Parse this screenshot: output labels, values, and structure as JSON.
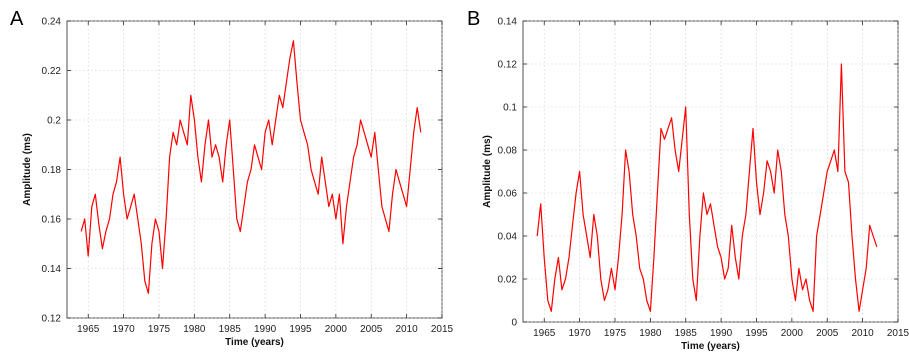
{
  "chart_data": [
    {
      "type": "line",
      "panel_label": "A",
      "title": "",
      "xlabel": "Time (years)",
      "ylabel": "Amplitude (ms)",
      "xlim": [
        1962,
        2015
      ],
      "ylim": [
        0.12,
        0.24
      ],
      "grid": true,
      "line_color": "#ff0000",
      "x_ticks": [
        1965,
        1970,
        1975,
        1980,
        1985,
        1990,
        1995,
        2000,
        2005,
        2010,
        2015
      ],
      "x_tick_labels": [
        "1965",
        "1970",
        "1975",
        "1980",
        "1985",
        "1990",
        "1995",
        "2000",
        "2005",
        "2010",
        "2015"
      ],
      "y_ticks": [
        0.12,
        0.14,
        0.16,
        0.18,
        0.2,
        0.22,
        0.24
      ],
      "y_tick_labels": [
        "0.12",
        "0.14",
        "0.16",
        "0.18",
        "0.2",
        "0.22",
        "0.24"
      ],
      "series": [
        {
          "x": [
            1964.0,
            1964.5,
            1965.0,
            1965.5,
            1966.0,
            1966.5,
            1967.0,
            1967.5,
            1968.0,
            1968.5,
            1969.0,
            1969.5,
            1970.0,
            1970.5,
            1971.0,
            1971.5,
            1972.0,
            1972.5,
            1973.0,
            1973.5,
            1974.0,
            1974.5,
            1975.0,
            1975.5,
            1976.0,
            1976.5,
            1977.0,
            1977.5,
            1978.0,
            1978.5,
            1979.0,
            1979.5,
            1980.0,
            1980.5,
            1981.0,
            1981.5,
            1982.0,
            1982.5,
            1983.0,
            1983.5,
            1984.0,
            1984.5,
            1985.0,
            1985.5,
            1986.0,
            1986.5,
            1987.0,
            1987.5,
            1988.0,
            1988.5,
            1989.0,
            1989.5,
            1990.0,
            1990.5,
            1991.0,
            1991.5,
            1992.0,
            1992.5,
            1993.0,
            1993.5,
            1994.0,
            1994.5,
            1995.0,
            1995.5,
            1996.0,
            1996.5,
            1997.0,
            1997.5,
            1998.0,
            1998.5,
            1999.0,
            1999.5,
            2000.0,
            2000.5,
            2001.0,
            2001.5,
            2002.0,
            2002.5,
            2003.0,
            2003.5,
            2004.0,
            2004.5,
            2005.0,
            2005.5,
            2006.0,
            2006.5,
            2007.0,
            2007.5,
            2008.0,
            2008.5,
            2009.0,
            2009.5,
            2010.0,
            2010.5,
            2011.0,
            2011.5,
            2012.0
          ],
          "values": [
            0.155,
            0.16,
            0.145,
            0.165,
            0.17,
            0.158,
            0.148,
            0.155,
            0.16,
            0.17,
            0.175,
            0.185,
            0.17,
            0.16,
            0.165,
            0.17,
            0.16,
            0.15,
            0.135,
            0.13,
            0.15,
            0.16,
            0.155,
            0.14,
            0.16,
            0.185,
            0.195,
            0.19,
            0.2,
            0.195,
            0.19,
            0.21,
            0.2,
            0.185,
            0.175,
            0.19,
            0.2,
            0.185,
            0.19,
            0.185,
            0.175,
            0.19,
            0.2,
            0.18,
            0.16,
            0.155,
            0.165,
            0.175,
            0.18,
            0.19,
            0.185,
            0.18,
            0.195,
            0.2,
            0.19,
            0.2,
            0.21,
            0.205,
            0.215,
            0.225,
            0.232,
            0.215,
            0.2,
            0.195,
            0.19,
            0.18,
            0.175,
            0.17,
            0.185,
            0.175,
            0.165,
            0.17,
            0.16,
            0.17,
            0.15,
            0.165,
            0.175,
            0.185,
            0.19,
            0.2,
            0.195,
            0.19,
            0.185,
            0.195,
            0.18,
            0.165,
            0.16,
            0.155,
            0.17,
            0.18,
            0.175,
            0.17,
            0.165,
            0.18,
            0.195,
            0.205,
            0.195
          ]
        }
      ]
    },
    {
      "type": "line",
      "panel_label": "B",
      "title": "",
      "xlabel": "Time (years)",
      "ylabel": "Amplitude (ms)",
      "xlim": [
        1962,
        2015
      ],
      "ylim": [
        0,
        0.14
      ],
      "grid": true,
      "line_color": "#ff0000",
      "x_ticks": [
        1965,
        1970,
        1975,
        1980,
        1985,
        1990,
        1995,
        2000,
        2005,
        2010,
        2015
      ],
      "x_tick_labels": [
        "1965",
        "1970",
        "1975",
        "1980",
        "1985",
        "1990",
        "1995",
        "2000",
        "2005",
        "2010",
        "2015"
      ],
      "y_ticks": [
        0,
        0.02,
        0.04,
        0.06,
        0.08,
        0.1,
        0.12,
        0.14
      ],
      "y_tick_labels": [
        "0",
        "0.02",
        "0.04",
        "0.06",
        "0.08",
        "0.1",
        "0.12",
        "0.14"
      ],
      "series": [
        {
          "x": [
            1964.0,
            1964.5,
            1965.0,
            1965.5,
            1966.0,
            1966.5,
            1967.0,
            1967.5,
            1968.0,
            1968.5,
            1969.0,
            1969.5,
            1970.0,
            1970.5,
            1971.0,
            1971.5,
            1972.0,
            1972.5,
            1973.0,
            1973.5,
            1974.0,
            1974.5,
            1975.0,
            1975.5,
            1976.0,
            1976.5,
            1977.0,
            1977.5,
            1978.0,
            1978.5,
            1979.0,
            1979.5,
            1980.0,
            1980.5,
            1981.0,
            1981.5,
            1982.0,
            1982.5,
            1983.0,
            1983.5,
            1984.0,
            1984.5,
            1985.0,
            1985.5,
            1986.0,
            1986.5,
            1987.0,
            1987.5,
            1988.0,
            1988.5,
            1989.0,
            1989.5,
            1990.0,
            1990.5,
            1991.0,
            1991.5,
            1992.0,
            1992.5,
            1993.0,
            1993.5,
            1994.0,
            1994.5,
            1995.0,
            1995.5,
            1996.0,
            1996.5,
            1997.0,
            1997.5,
            1998.0,
            1998.5,
            1999.0,
            1999.5,
            2000.0,
            2000.5,
            2001.0,
            2001.5,
            2002.0,
            2002.5,
            2003.0,
            2003.5,
            2004.0,
            2004.5,
            2005.0,
            2005.5,
            2006.0,
            2006.5,
            2007.0,
            2007.5,
            2008.0,
            2008.5,
            2009.0,
            2009.5,
            2010.0,
            2010.5,
            2011.0,
            2011.5,
            2012.0
          ],
          "values": [
            0.04,
            0.055,
            0.03,
            0.01,
            0.005,
            0.02,
            0.03,
            0.015,
            0.02,
            0.03,
            0.045,
            0.06,
            0.07,
            0.05,
            0.04,
            0.03,
            0.05,
            0.04,
            0.02,
            0.01,
            0.015,
            0.025,
            0.015,
            0.03,
            0.05,
            0.08,
            0.07,
            0.05,
            0.04,
            0.025,
            0.02,
            0.01,
            0.005,
            0.03,
            0.06,
            0.09,
            0.085,
            0.09,
            0.095,
            0.08,
            0.07,
            0.085,
            0.1,
            0.05,
            0.02,
            0.01,
            0.04,
            0.06,
            0.05,
            0.055,
            0.045,
            0.035,
            0.03,
            0.02,
            0.025,
            0.045,
            0.03,
            0.02,
            0.04,
            0.05,
            0.07,
            0.09,
            0.065,
            0.05,
            0.06,
            0.075,
            0.07,
            0.06,
            0.08,
            0.07,
            0.05,
            0.04,
            0.02,
            0.01,
            0.025,
            0.015,
            0.02,
            0.01,
            0.005,
            0.04,
            0.05,
            0.06,
            0.07,
            0.075,
            0.08,
            0.07,
            0.12,
            0.07,
            0.065,
            0.04,
            0.02,
            0.005,
            0.015,
            0.025,
            0.045,
            0.04,
            0.035
          ]
        }
      ]
    }
  ]
}
